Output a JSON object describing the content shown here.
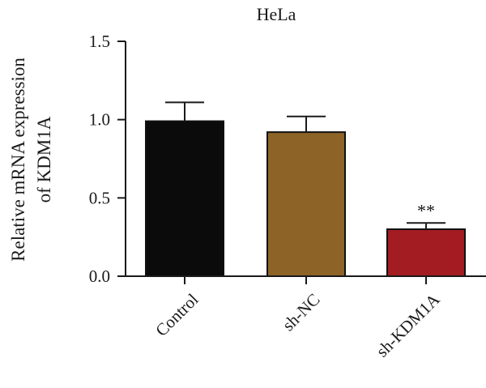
{
  "chart_data": {
    "type": "bar",
    "title": "HeLa",
    "ylabel_lines": [
      "Relative mRNA expression",
      "of KDM1A"
    ],
    "categories": [
      "Control",
      "sh-NC",
      "sh-KDM1A"
    ],
    "values": [
      0.99,
      0.92,
      0.3
    ],
    "errors": [
      0.12,
      0.1,
      0.04
    ],
    "annotations": [
      "",
      "",
      "**"
    ],
    "colors": [
      "#0b0b0b",
      "#8e6328",
      "#a31c21"
    ],
    "ylim": [
      0,
      1.5
    ],
    "yticks": [
      0.0,
      0.5,
      1.0,
      1.5
    ],
    "ytick_labels": [
      "0.0",
      "0.5",
      "1.0",
      "1.5"
    ],
    "grid": false
  }
}
